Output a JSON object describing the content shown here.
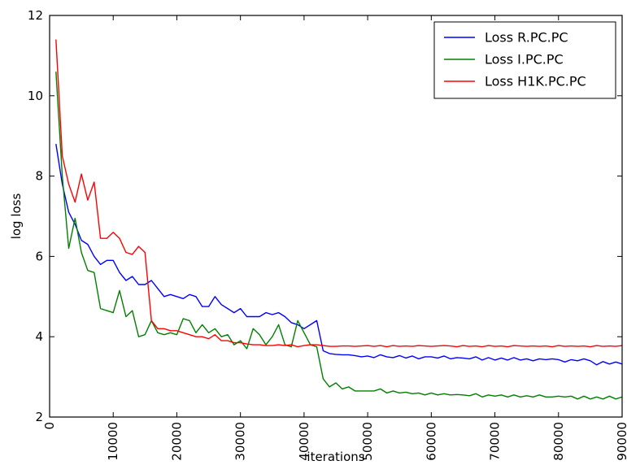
{
  "chart_data": {
    "type": "line",
    "xlabel": "iterations",
    "ylabel": "log loss",
    "xlim": [
      0,
      90000
    ],
    "ylim": [
      2,
      12
    ],
    "x_ticks": [
      0,
      10000,
      20000,
      30000,
      40000,
      50000,
      60000,
      70000,
      80000,
      90000
    ],
    "y_ticks": [
      2,
      4,
      6,
      8,
      10,
      12
    ],
    "x_tick_labels": [
      "0",
      "10000",
      "20000",
      "30000",
      "40000",
      "50000",
      "60000",
      "70000",
      "80000",
      "90000"
    ],
    "y_tick_labels": [
      "2",
      "4",
      "6",
      "8",
      "10",
      "12"
    ],
    "grid": false,
    "legend_position": "top-right",
    "x": [
      1000,
      2000,
      3000,
      4000,
      5000,
      6000,
      7000,
      8000,
      9000,
      10000,
      11000,
      12000,
      13000,
      14000,
      15000,
      16000,
      17000,
      18000,
      19000,
      20000,
      21000,
      22000,
      23000,
      24000,
      25000,
      26000,
      27000,
      28000,
      29000,
      30000,
      31000,
      32000,
      33000,
      34000,
      35000,
      36000,
      37000,
      38000,
      39000,
      40000,
      41000,
      42000,
      43000,
      44000,
      45000,
      46000,
      47000,
      48000,
      49000,
      50000,
      51000,
      52000,
      53000,
      54000,
      55000,
      56000,
      57000,
      58000,
      59000,
      60000,
      61000,
      62000,
      63000,
      64000,
      65000,
      66000,
      67000,
      68000,
      69000,
      70000,
      71000,
      72000,
      73000,
      74000,
      75000,
      76000,
      77000,
      78000,
      79000,
      80000,
      81000,
      82000,
      83000,
      84000,
      85000,
      86000,
      87000,
      88000,
      89000,
      90000
    ],
    "series": [
      {
        "name": "Loss R.PC.PC",
        "color": "#0000ff",
        "values": [
          8.8,
          7.8,
          7.1,
          6.8,
          6.4,
          6.3,
          6.0,
          5.8,
          5.9,
          5.9,
          5.6,
          5.4,
          5.5,
          5.3,
          5.3,
          5.4,
          5.2,
          5.0,
          5.05,
          5.0,
          4.95,
          5.05,
          5.0,
          4.75,
          4.75,
          5.0,
          4.8,
          4.7,
          4.6,
          4.7,
          4.5,
          4.5,
          4.5,
          4.6,
          4.55,
          4.6,
          4.5,
          4.35,
          4.3,
          4.2,
          4.3,
          4.4,
          3.65,
          3.58,
          3.56,
          3.55,
          3.55,
          3.53,
          3.5,
          3.52,
          3.48,
          3.55,
          3.5,
          3.48,
          3.53,
          3.47,
          3.52,
          3.45,
          3.5,
          3.5,
          3.47,
          3.52,
          3.45,
          3.48,
          3.47,
          3.45,
          3.5,
          3.42,
          3.48,
          3.42,
          3.47,
          3.42,
          3.48,
          3.42,
          3.45,
          3.4,
          3.45,
          3.43,
          3.45,
          3.43,
          3.37,
          3.43,
          3.4,
          3.45,
          3.4,
          3.3,
          3.38,
          3.32,
          3.37,
          3.32
        ]
      },
      {
        "name": "Loss I.PC.PC",
        "color": "#008000",
        "values": [
          10.6,
          8.0,
          6.2,
          6.95,
          6.1,
          5.65,
          5.6,
          4.7,
          4.65,
          4.6,
          5.15,
          4.5,
          4.65,
          4.0,
          4.05,
          4.4,
          4.1,
          4.05,
          4.1,
          4.05,
          4.45,
          4.4,
          4.1,
          4.3,
          4.1,
          4.2,
          4.0,
          4.05,
          3.8,
          3.9,
          3.7,
          4.2,
          4.05,
          3.8,
          4.0,
          4.3,
          3.8,
          3.75,
          4.4,
          4.1,
          3.8,
          3.75,
          2.95,
          2.75,
          2.85,
          2.7,
          2.75,
          2.65,
          2.65,
          2.65,
          2.65,
          2.7,
          2.6,
          2.65,
          2.6,
          2.62,
          2.58,
          2.6,
          2.55,
          2.6,
          2.55,
          2.58,
          2.55,
          2.56,
          2.55,
          2.53,
          2.58,
          2.5,
          2.55,
          2.52,
          2.55,
          2.5,
          2.55,
          2.5,
          2.53,
          2.5,
          2.55,
          2.5,
          2.5,
          2.52,
          2.5,
          2.52,
          2.45,
          2.52,
          2.45,
          2.5,
          2.45,
          2.52,
          2.45,
          2.5
        ]
      },
      {
        "name": "Loss H1K.PC.PC",
        "color": "#ff0000",
        "values": [
          11.4,
          8.5,
          7.8,
          7.35,
          8.05,
          7.4,
          7.85,
          6.45,
          6.45,
          6.6,
          6.45,
          6.1,
          6.05,
          6.25,
          6.1,
          4.4,
          4.2,
          4.2,
          4.15,
          4.15,
          4.1,
          4.05,
          4.0,
          4.0,
          3.95,
          4.05,
          3.9,
          3.9,
          3.85,
          3.85,
          3.82,
          3.8,
          3.8,
          3.78,
          3.78,
          3.8,
          3.78,
          3.8,
          3.75,
          3.78,
          3.8,
          3.8,
          3.78,
          3.76,
          3.76,
          3.77,
          3.77,
          3.76,
          3.77,
          3.78,
          3.76,
          3.78,
          3.75,
          3.78,
          3.76,
          3.77,
          3.76,
          3.78,
          3.77,
          3.76,
          3.77,
          3.78,
          3.77,
          3.75,
          3.78,
          3.76,
          3.77,
          3.75,
          3.78,
          3.76,
          3.77,
          3.75,
          3.78,
          3.77,
          3.76,
          3.77,
          3.76,
          3.77,
          3.75,
          3.78,
          3.76,
          3.77,
          3.76,
          3.77,
          3.75,
          3.78,
          3.76,
          3.77,
          3.76,
          3.78
        ]
      }
    ]
  }
}
